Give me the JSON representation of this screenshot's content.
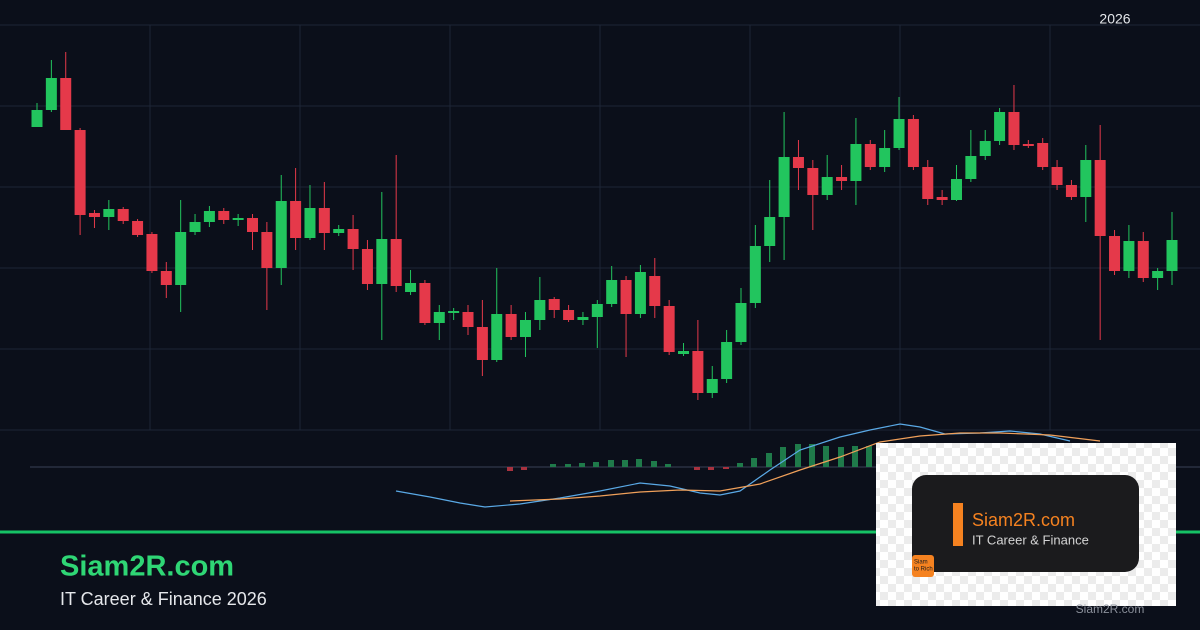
{
  "chart_data": {
    "type": "candlestick",
    "year_label": "2026",
    "up_color": "#22c55e",
    "down_color": "#e5394a",
    "ylim": [
      200,
      605
    ],
    "open": [
      503,
      520,
      552,
      500,
      417,
      413,
      421,
      409,
      396,
      359,
      345,
      398,
      408,
      419,
      410,
      412,
      398,
      362,
      429,
      392,
      422,
      397,
      401,
      381,
      346,
      391,
      338,
      347,
      307,
      317,
      318,
      303,
      270,
      316,
      293,
      310,
      331,
      320,
      310,
      313,
      326,
      350,
      316,
      354,
      324,
      276,
      279,
      237,
      251,
      288,
      327,
      384,
      413,
      473,
      462,
      435,
      453,
      449,
      486,
      463,
      482,
      511,
      463,
      433,
      430,
      451,
      474,
      489,
      518,
      486,
      487,
      463,
      445,
      433,
      470,
      394,
      359,
      389,
      352,
      359
    ],
    "close": [
      520,
      552,
      500,
      415,
      413,
      421,
      409,
      395,
      359,
      345,
      398,
      408,
      419,
      410,
      412,
      398,
      362,
      429,
      392,
      422,
      397,
      401,
      381,
      346,
      391,
      344,
      347,
      307,
      318,
      319,
      303,
      270,
      316,
      293,
      310,
      330,
      320,
      310,
      313,
      326,
      350,
      316,
      358,
      324,
      278,
      279,
      237,
      251,
      288,
      327,
      384,
      413,
      473,
      462,
      435,
      453,
      449,
      486,
      463,
      482,
      511,
      463,
      431,
      430,
      451,
      474,
      489,
      518,
      485,
      484,
      463,
      445,
      433,
      470,
      394,
      359,
      389,
      352,
      359,
      390
    ],
    "high": [
      527,
      570,
      578,
      502,
      420,
      430,
      423,
      411,
      398,
      368,
      430,
      416,
      424,
      422,
      416,
      416,
      408,
      455,
      462,
      445,
      448,
      405,
      415,
      390,
      438,
      475,
      360,
      350,
      325,
      322,
      325,
      330,
      362,
      325,
      318,
      353,
      333,
      325,
      318,
      330,
      364,
      354,
      365,
      372,
      330,
      287,
      310,
      264,
      300,
      342,
      405,
      450,
      518,
      490,
      470,
      475,
      465,
      512,
      490,
      500,
      533,
      515,
      470,
      440,
      465,
      500,
      500,
      522,
      545,
      490,
      492,
      470,
      450,
      485,
      505,
      400,
      405,
      398,
      362,
      418
    ],
    "low": [
      503,
      518,
      500,
      395,
      402,
      400,
      406,
      393,
      357,
      332,
      318,
      395,
      403,
      406,
      404,
      380,
      320,
      345,
      380,
      390,
      380,
      394,
      360,
      340,
      290,
      338,
      335,
      305,
      290,
      310,
      295,
      254,
      268,
      290,
      273,
      300,
      312,
      308,
      305,
      282,
      323,
      273,
      312,
      312,
      275,
      274,
      230,
      232,
      247,
      285,
      322,
      368,
      370,
      440,
      400,
      430,
      440,
      425,
      460,
      458,
      480,
      460,
      425,
      425,
      429,
      448,
      470,
      485,
      480,
      482,
      460,
      440,
      430,
      408,
      290,
      355,
      352,
      348,
      340,
      345
    ]
  },
  "footer": {
    "title": "Siam2R.com",
    "subtitle": "IT Career & Finance 2026"
  },
  "logo": {
    "title": "Siam2R.com",
    "subtitle": "IT Career & Finance",
    "badge": [
      "Siam",
      "to Rich"
    ]
  },
  "watermark": "Siam2R.com"
}
